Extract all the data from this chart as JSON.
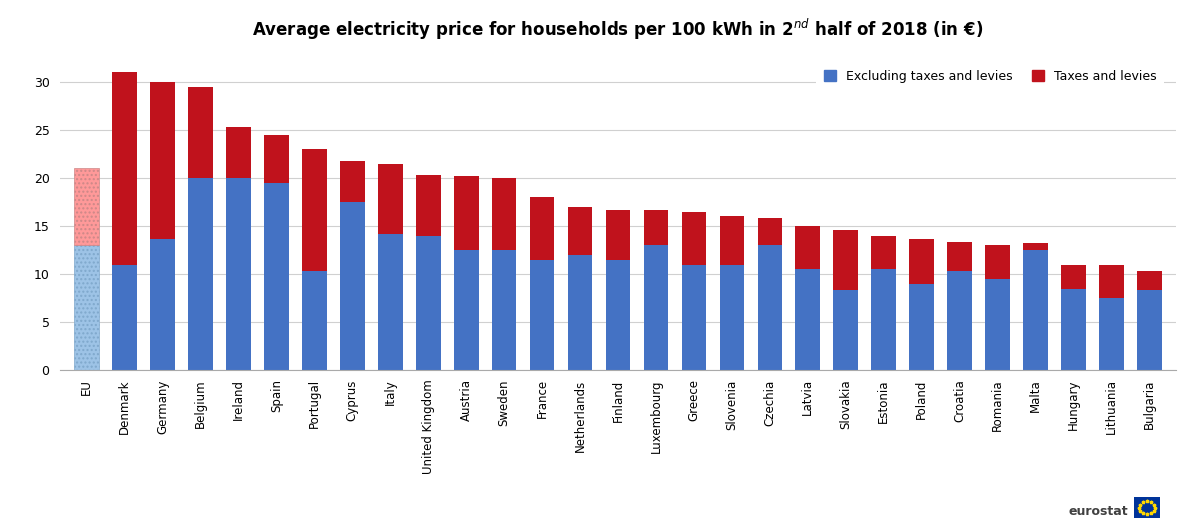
{
  "countries": [
    "EU",
    "Denmark",
    "Germany",
    "Belgium",
    "Ireland",
    "Spain",
    "Portugal",
    "Cyprus",
    "Italy",
    "United Kingdom",
    "Austria",
    "Sweden",
    "France",
    "Netherlands",
    "Finland",
    "Luxembourg",
    "Greece",
    "Slovenia",
    "Czechia",
    "Latvia",
    "Slovakia",
    "Estonia",
    "Poland",
    "Croatia",
    "Romania",
    "Malta",
    "Hungary",
    "Lithuania",
    "Bulgaria"
  ],
  "base_values": [
    13.0,
    11.0,
    13.7,
    20.0,
    20.0,
    19.5,
    10.3,
    17.5,
    14.2,
    14.0,
    12.5,
    12.5,
    11.5,
    12.0,
    11.5,
    13.0,
    11.0,
    11.0,
    13.0,
    10.5,
    8.3,
    10.5,
    9.0,
    10.3,
    9.5,
    12.5,
    8.5,
    7.5,
    8.3
  ],
  "tax_values": [
    8.0,
    20.0,
    16.3,
    9.5,
    5.3,
    5.0,
    12.7,
    4.3,
    7.3,
    6.3,
    7.7,
    7.5,
    6.5,
    5.0,
    5.2,
    3.7,
    5.5,
    5.0,
    2.8,
    4.5,
    6.3,
    3.5,
    4.7,
    3.0,
    3.5,
    0.7,
    2.5,
    3.5,
    2.0
  ],
  "base_color": "#4472C4",
  "tax_color": "#C0121C",
  "eu_base_color": "#9DC3E6",
  "eu_tax_color": "#FF9999",
  "ylim": [
    0,
    33
  ],
  "yticks": [
    0,
    5,
    10,
    15,
    20,
    25,
    30
  ],
  "legend_label_base": "Excluding taxes and levies",
  "legend_label_tax": "Taxes and levies",
  "background_color": "#ffffff",
  "grid_color": "#d0d0d0",
  "figsize": [
    12.0,
    5.29
  ],
  "dpi": 100,
  "title": "Average electricity price for households per 100 kWh in 2$^{nd}$ half of 2018 (in €)"
}
